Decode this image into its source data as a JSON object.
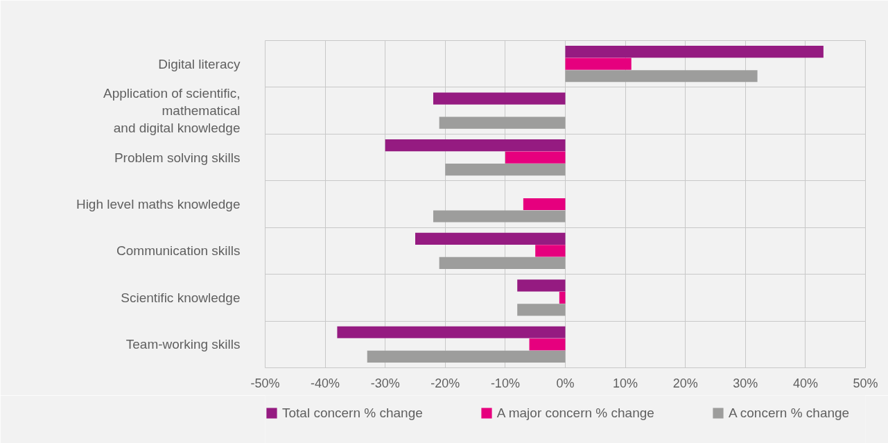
{
  "chart_data": {
    "type": "bar",
    "orientation": "horizontal",
    "categories": [
      "Digital literacy",
      "Application of scientific,\nmathematical\nand digital knowledge",
      "Problem solving skills",
      "High level maths knowledge",
      "Communication skills",
      "Scientific knowledge",
      "Team-working skills"
    ],
    "series": [
      {
        "name": "Total concern % change",
        "color": "#951b81",
        "values": [
          43,
          -22,
          -30,
          0,
          -25,
          -8,
          -38
        ]
      },
      {
        "name": "A major concern % change",
        "color": "#e6007e",
        "values": [
          11,
          0,
          -10,
          -7,
          -5,
          -1,
          -6
        ]
      },
      {
        "name": "A concern % change",
        "color": "#9d9d9c",
        "values": [
          32,
          -21,
          -20,
          -22,
          -21,
          -8,
          -33
        ]
      }
    ],
    "xlim": [
      -50,
      50
    ],
    "xticks": [
      {
        "value": -50,
        "label": "-50%"
      },
      {
        "value": -40,
        "label": "-40%"
      },
      {
        "value": -30,
        "label": "-30%"
      },
      {
        "value": -20,
        "label": "-20%"
      },
      {
        "value": -10,
        "label": "-10%"
      },
      {
        "value": 0,
        "label": "0%"
      },
      {
        "value": 10,
        "label": "10%"
      },
      {
        "value": 20,
        "label": "20%"
      },
      {
        "value": 30,
        "label": "30%"
      },
      {
        "value": 40,
        "label": "40%"
      },
      {
        "value": 50,
        "label": "50%"
      }
    ],
    "grid": true,
    "legend": "bottom"
  }
}
